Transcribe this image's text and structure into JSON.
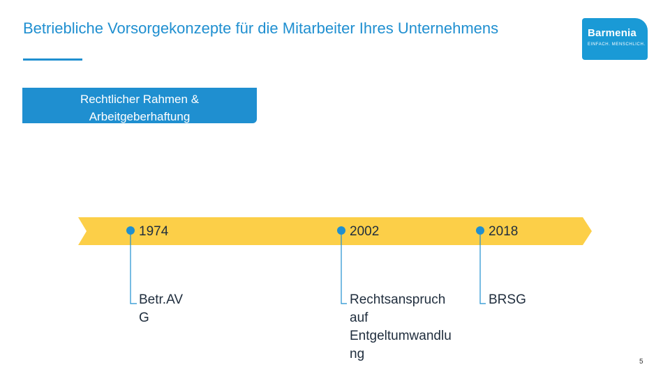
{
  "slide": {
    "title": "Betriebliche Vorsorgekonzepte für die Mitarbeiter Ihres Unternehmens",
    "section_label_line1": "Rechtlicher Rahmen &",
    "section_label_line2": "Arbeitgeberhaftung",
    "page_number": "5"
  },
  "logo": {
    "name": "Barmenia",
    "claim": "EINFACH. MENSCHLICH."
  },
  "timeline": {
    "items": [
      {
        "year": "1974",
        "event_line1": "Betr.AV",
        "event_line2": "G",
        "event_line3": "",
        "event_line4": ""
      },
      {
        "year": "2002",
        "event_line1": "Rechtsanspruch",
        "event_line2": "auf",
        "event_line3": "Entgeltumwandlu",
        "event_line4": "ng"
      },
      {
        "year": "2018",
        "event_line1": "BRSG",
        "event_line2": "",
        "event_line3": "",
        "event_line4": ""
      }
    ]
  },
  "colors": {
    "accent_blue": "#1f8fd0",
    "band_yellow": "#fccf48",
    "marker_blue": "#1f8fd0"
  }
}
